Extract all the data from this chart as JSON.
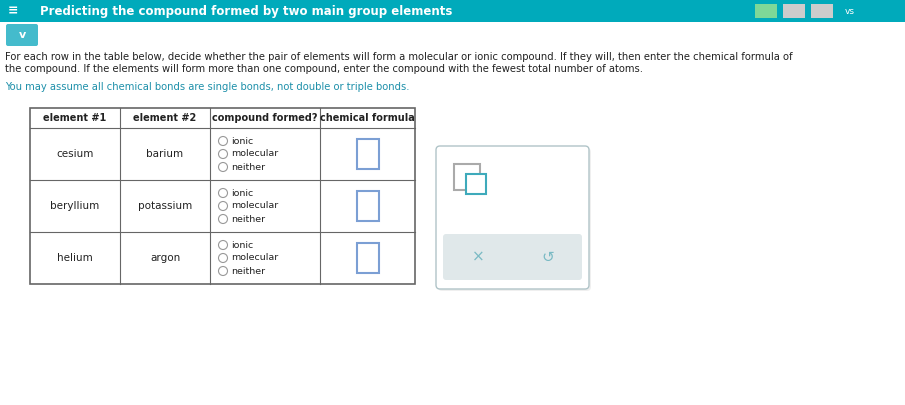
{
  "title": "Predicting the compound formed by two main group elements",
  "header_bg": "#00AABB",
  "header_text_color": "#FFFFFF",
  "body_bg": "#FFFFFF",
  "paragraph1_line1": "For each row in the table below, decide whether the pair of elements will form a molecular or ionic compound. If they will, then enter the chemical formula of",
  "paragraph1_line2": "the compound. If the elements will form more than one compound, enter the compound with the fewest total number of atoms.",
  "paragraph2": "You may assume all chemical bonds are single bonds, not double or triple bonds.",
  "table_headers": [
    "element #1",
    "element #2",
    "compound formed?",
    "chemical formula"
  ],
  "rows": [
    {
      "el1": "cesium",
      "el2": "barium",
      "options": [
        "ionic",
        "molecular",
        "neither"
      ]
    },
    {
      "el1": "beryllium",
      "el2": "potassium",
      "options": [
        "ionic",
        "molecular",
        "neither"
      ]
    },
    {
      "el1": "helium",
      "el2": "argon",
      "options": [
        "ionic",
        "molecular",
        "neither"
      ]
    }
  ],
  "text_color": "#333333",
  "radio_color": "#999999",
  "formula_box_color": "#7B9FD4",
  "popup_box_color": "#FFFFFF",
  "popup_border_color": "#B0C4C8",
  "popup_icon_color": "#5BBFCC",
  "popup_icon_color2": "#3EAABB",
  "popup_button_bg": "#E0E8EA",
  "popup_symbol_color": "#7ABAC4",
  "teal_text_color": "#1E90AA",
  "dark_text": "#222222",
  "header_btn_colors": [
    "#7BD4A0",
    "#AAAAAA",
    "#AAAAAA"
  ],
  "fig_width": 9.05,
  "fig_height": 4.05,
  "dpi": 100
}
